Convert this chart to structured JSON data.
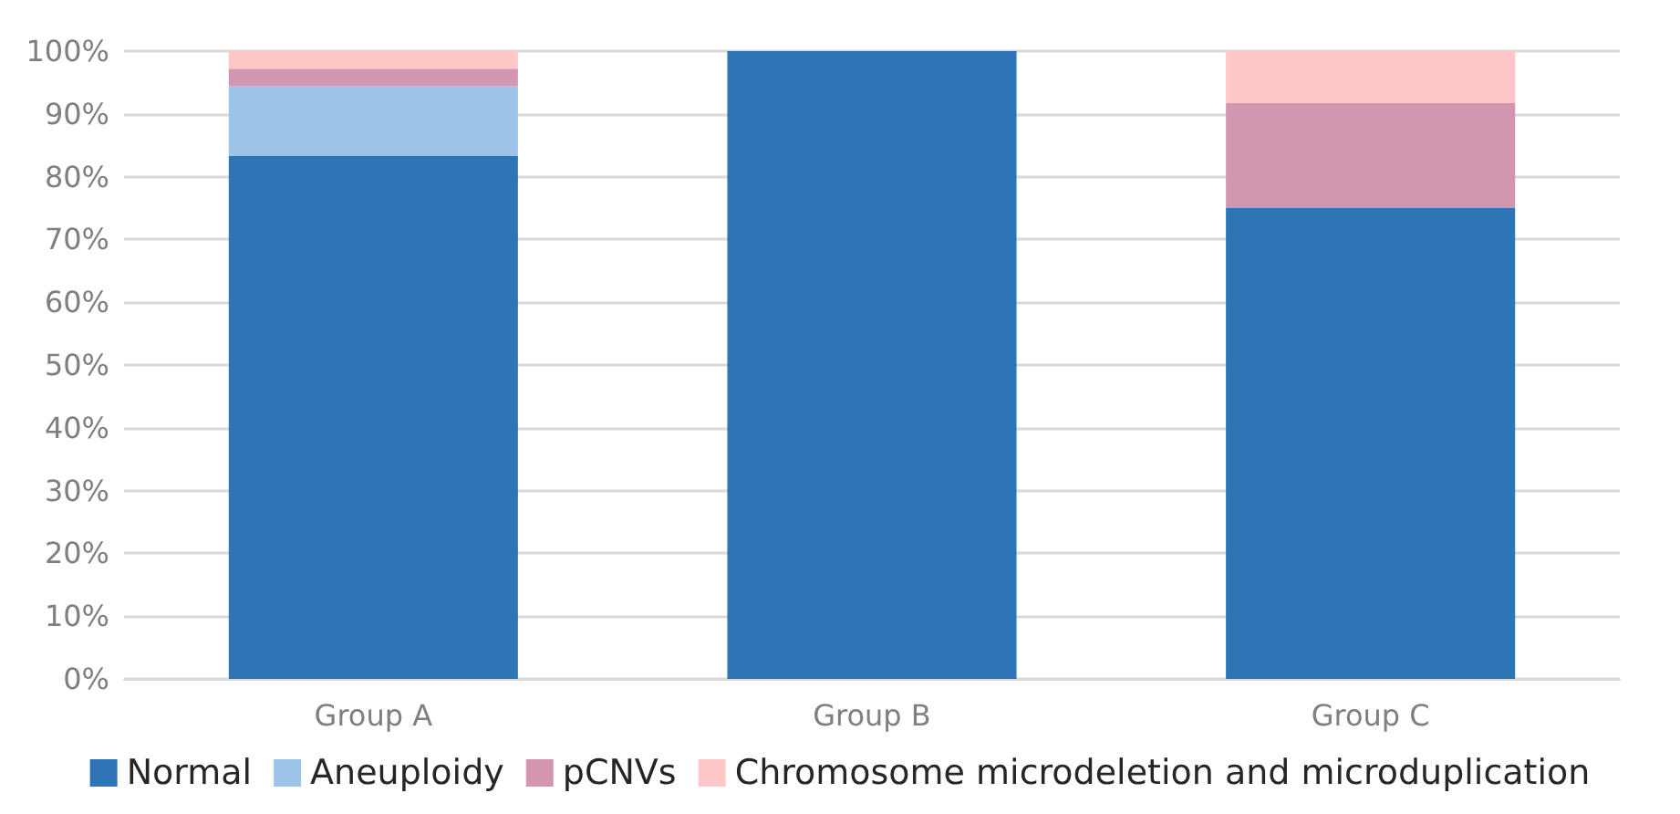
{
  "chart_data": {
    "type": "bar",
    "stacked": true,
    "categories": [
      "Group A",
      "Group B",
      "Group C"
    ],
    "series": [
      {
        "name": "Normal",
        "color": "#2e75b6",
        "values": [
          83.3,
          100,
          75
        ]
      },
      {
        "name": "Aneuploidy",
        "color": "#9dc3e6",
        "values": [
          11.1,
          0,
          0
        ]
      },
      {
        "name": "pCNVs",
        "color": "#d396b0",
        "values": [
          2.8,
          0,
          16.7
        ]
      },
      {
        "name": "Chromosome microdeletion and microduplication",
        "color": "#ffc7c7",
        "values": [
          2.8,
          0,
          8.3
        ]
      }
    ],
    "ylim": [
      0,
      100
    ],
    "yticks": [
      {
        "value": 0,
        "label": "0%"
      },
      {
        "value": 10,
        "label": "10%"
      },
      {
        "value": 20,
        "label": "20%"
      },
      {
        "value": 30,
        "label": "30%"
      },
      {
        "value": 40,
        "label": "40%"
      },
      {
        "value": 50,
        "label": "50%"
      },
      {
        "value": 60,
        "label": "60%"
      },
      {
        "value": 70,
        "label": "70%"
      },
      {
        "value": 80,
        "label": "80%"
      },
      {
        "value": 90,
        "label": "90%"
      },
      {
        "value": 100,
        "label": "100%"
      }
    ],
    "grid": "y",
    "legend": "bottom"
  }
}
